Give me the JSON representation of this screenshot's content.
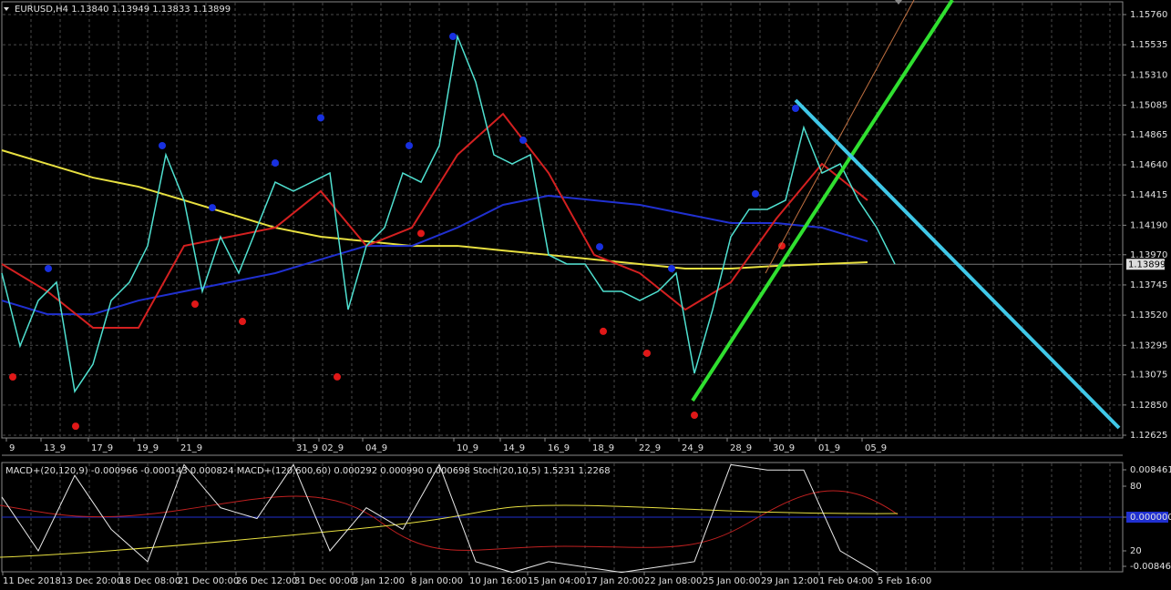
{
  "window": {
    "symbol_header": "EURUSD,H4  1.13840 1.13949 1.13833 1.13899",
    "price_ticks": [
      {
        "value": 1.1576,
        "label": "1.15760"
      },
      {
        "value": 1.15535,
        "label": "1.15535"
      },
      {
        "value": 1.1531,
        "label": "1.15310"
      },
      {
        "value": 1.15085,
        "label": "1.15085"
      },
      {
        "value": 1.14865,
        "label": "1.14865"
      },
      {
        "value": 1.1464,
        "label": "1.14640"
      },
      1.14415,
      {
        "value": 1.1419,
        "label": "1.14190"
      },
      {
        "value": 1.1397,
        "label": "1.13970"
      },
      1.13745,
      {
        "value": 1.1352,
        "label": "1.13520"
      },
      1.13295,
      1.13075,
      {
        "value": 1.1285,
        "label": "1.12850"
      },
      1.12625
    ],
    "current_price": 1.13899,
    "time_labels": [
      "9",
      "13_9",
      "17_9",
      "19_9",
      "21_9",
      "31_9",
      "02_9",
      "04_9",
      "10_9",
      "14_9",
      "16_9",
      "18_9",
      "22_9",
      "24_9",
      "28_9",
      "30_9",
      "01_9",
      "05_9"
    ],
    "indicator_header": "MACD+(20,120,9) -0.000966 -0.000143 0.000824  MACD+(120,600,60) 0.000292 0.000990 0.000698  Stoch(20,10,5) 1.5231 1.2268",
    "indicator_ticks": [
      0.008461,
      80,
      {
        "value": 0,
        "label": "0.000000"
      },
      20,
      -0.008461
    ],
    "date_labels": [
      "11 Dec 2018",
      "13 Dec 20:00",
      "18 Dec 08:00",
      "21 Dec 00:00",
      "26 Dec 12:00",
      "31 Dec 00:00",
      "3 Jan 12:00",
      "8 Jan 00:00",
      "10 Jan 16:00",
      "15 Jan 04:00",
      "17 Jan 20:00",
      "22 Jan 08:00",
      "25 Jan 00:00",
      "29 Jan 12:00",
      "1 Feb 04:00",
      "5 Feb 16:00"
    ]
  },
  "series": {
    "price": {
      "color": "#4fe0d0",
      "values": [
        1.13833,
        1.1329,
        1.13629,
        1.13765,
        1.12951,
        1.13154,
        1.13629,
        1.13765,
        1.14036,
        1.14715,
        1.14376,
        1.13697,
        1.14104,
        1.13833,
        1.14172,
        1.14511,
        1.14444,
        1.14511,
        1.14579,
        1.13561,
        1.14036,
        1.14172,
        1.14579,
        1.14511,
        1.14783,
        1.15597,
        1.15258,
        1.14715,
        1.14647,
        1.14715,
        1.13969,
        1.13901,
        1.13901,
        1.13697,
        1.13697,
        1.13629,
        1.13697,
        1.13833,
        1.13086,
        1.13561,
        1.14104,
        1.14308,
        1.14308,
        1.14376,
        1.14919,
        1.14579,
        1.14647,
        1.14376,
        1.14172,
        1.13901
      ]
    },
    "ma_red": {
      "color": "#d42020",
      "values": [
        1.13901,
        1.13697,
        1.13426,
        1.13426,
        1.14036,
        1.14104,
        1.14172,
        1.14444,
        1.14036,
        1.14172,
        1.14715,
        1.1502,
        1.14579,
        1.13969,
        1.13833,
        1.13561,
        1.13765,
        1.1424,
        1.14647,
        1.14376
      ]
    },
    "ma_blue": {
      "color": "#2030d0",
      "values": [
        1.13629,
        1.13527,
        1.13527,
        1.13629,
        1.13697,
        1.13765,
        1.13833,
        1.13935,
        1.14036,
        1.14036,
        1.14172,
        1.14342,
        1.1441,
        1.14376,
        1.14342,
        1.14274,
        1.14206,
        1.14206,
        1.14172,
        1.1407
      ]
    },
    "ma_yellow": {
      "color": "#e8e040",
      "values": [
        1.14749,
        1.14647,
        1.14545,
        1.14477,
        1.14376,
        1.14274,
        1.14172,
        1.14104,
        1.1407,
        1.14036,
        1.14036,
        1.14002,
        1.13969,
        1.13935,
        1.13901,
        1.13867,
        1.13867,
        1.13887,
        1.13901,
        1.13914
      ]
    },
    "stoch": {
      "color": "#e8e8e8",
      "values": [
        70,
        20,
        90,
        40,
        10,
        100,
        60,
        50,
        100,
        20,
        60,
        40,
        100,
        10,
        0,
        10,
        5,
        0,
        5,
        10,
        100,
        95,
        95,
        20,
        0
      ]
    },
    "up_fractals": {
      "color": "#1830e0",
      "x": [
        2.65,
        8.9,
        11.65,
        15.1,
        17.6,
        22.45,
        24.85,
        28.7,
        32.9,
        36.85,
        41.45,
        43.65
      ],
      "values": [
        1.13867,
        1.14783,
        1.14321,
        1.14654,
        1.1499,
        1.14783,
        1.15597,
        1.14824,
        1.14029,
        1.13867,
        1.14424,
        1.15061
      ]
    },
    "down_fractals": {
      "color": "#e01818",
      "x": [
        0.7,
        4.15,
        10.7,
        13.3,
        18.5,
        23.1,
        33.1,
        35.5,
        38.1,
        42.9
      ],
      "values": [
        1.13059,
        1.12692,
        1.13602,
        1.13473,
        1.1306,
        1.14129,
        1.13399,
        1.13236,
        1.12774,
        1.14036
      ]
    }
  }
}
